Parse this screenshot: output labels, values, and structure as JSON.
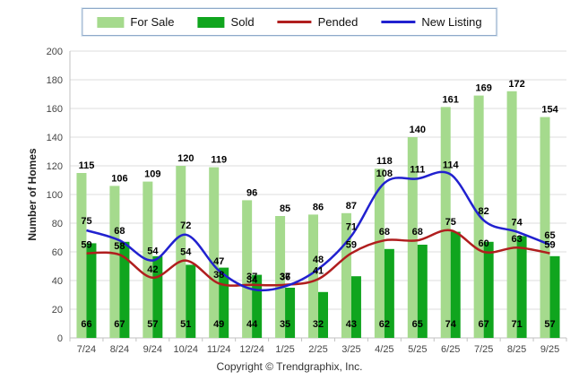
{
  "chart_data": {
    "type": "combo",
    "categories": [
      "7/24",
      "8/24",
      "9/24",
      "10/24",
      "11/24",
      "12/24",
      "1/25",
      "2/25",
      "3/25",
      "4/25",
      "5/25",
      "6/25",
      "7/25",
      "8/25",
      "9/25"
    ],
    "series": [
      {
        "name": "For Sale",
        "type": "bar",
        "color": "#A5DA8D",
        "values": [
          115,
          106,
          109,
          120,
          119,
          96,
          85,
          86,
          87,
          118,
          140,
          161,
          169,
          172,
          154
        ]
      },
      {
        "name": "Sold",
        "type": "bar",
        "color": "#10A51E",
        "values": [
          66,
          67,
          57,
          51,
          49,
          44,
          35,
          32,
          43,
          62,
          65,
          74,
          67,
          71,
          57
        ]
      },
      {
        "name": "Pended",
        "type": "line",
        "color": "#B01E1E",
        "values": [
          59,
          58,
          42,
          54,
          38,
          37,
          37,
          41,
          59,
          68,
          68,
          75,
          60,
          63,
          59
        ]
      },
      {
        "name": "New Listing",
        "type": "line",
        "color": "#2121CF",
        "values": [
          75,
          68,
          54,
          72,
          47,
          34,
          36,
          48,
          71,
          108,
          111,
          114,
          82,
          74,
          65
        ]
      }
    ],
    "title": "",
    "xlabel": "",
    "ylabel": "Number of Homes",
    "ylim": [
      0,
      200
    ],
    "ytick_step": 20,
    "grid": true,
    "legend_position": "top-center",
    "grid_color": "#dedede",
    "axis_color": "#c2c2c2",
    "tick_label_color": "#454545"
  },
  "footer": {
    "copyright": "Copyright © Trendgraphix, Inc."
  }
}
